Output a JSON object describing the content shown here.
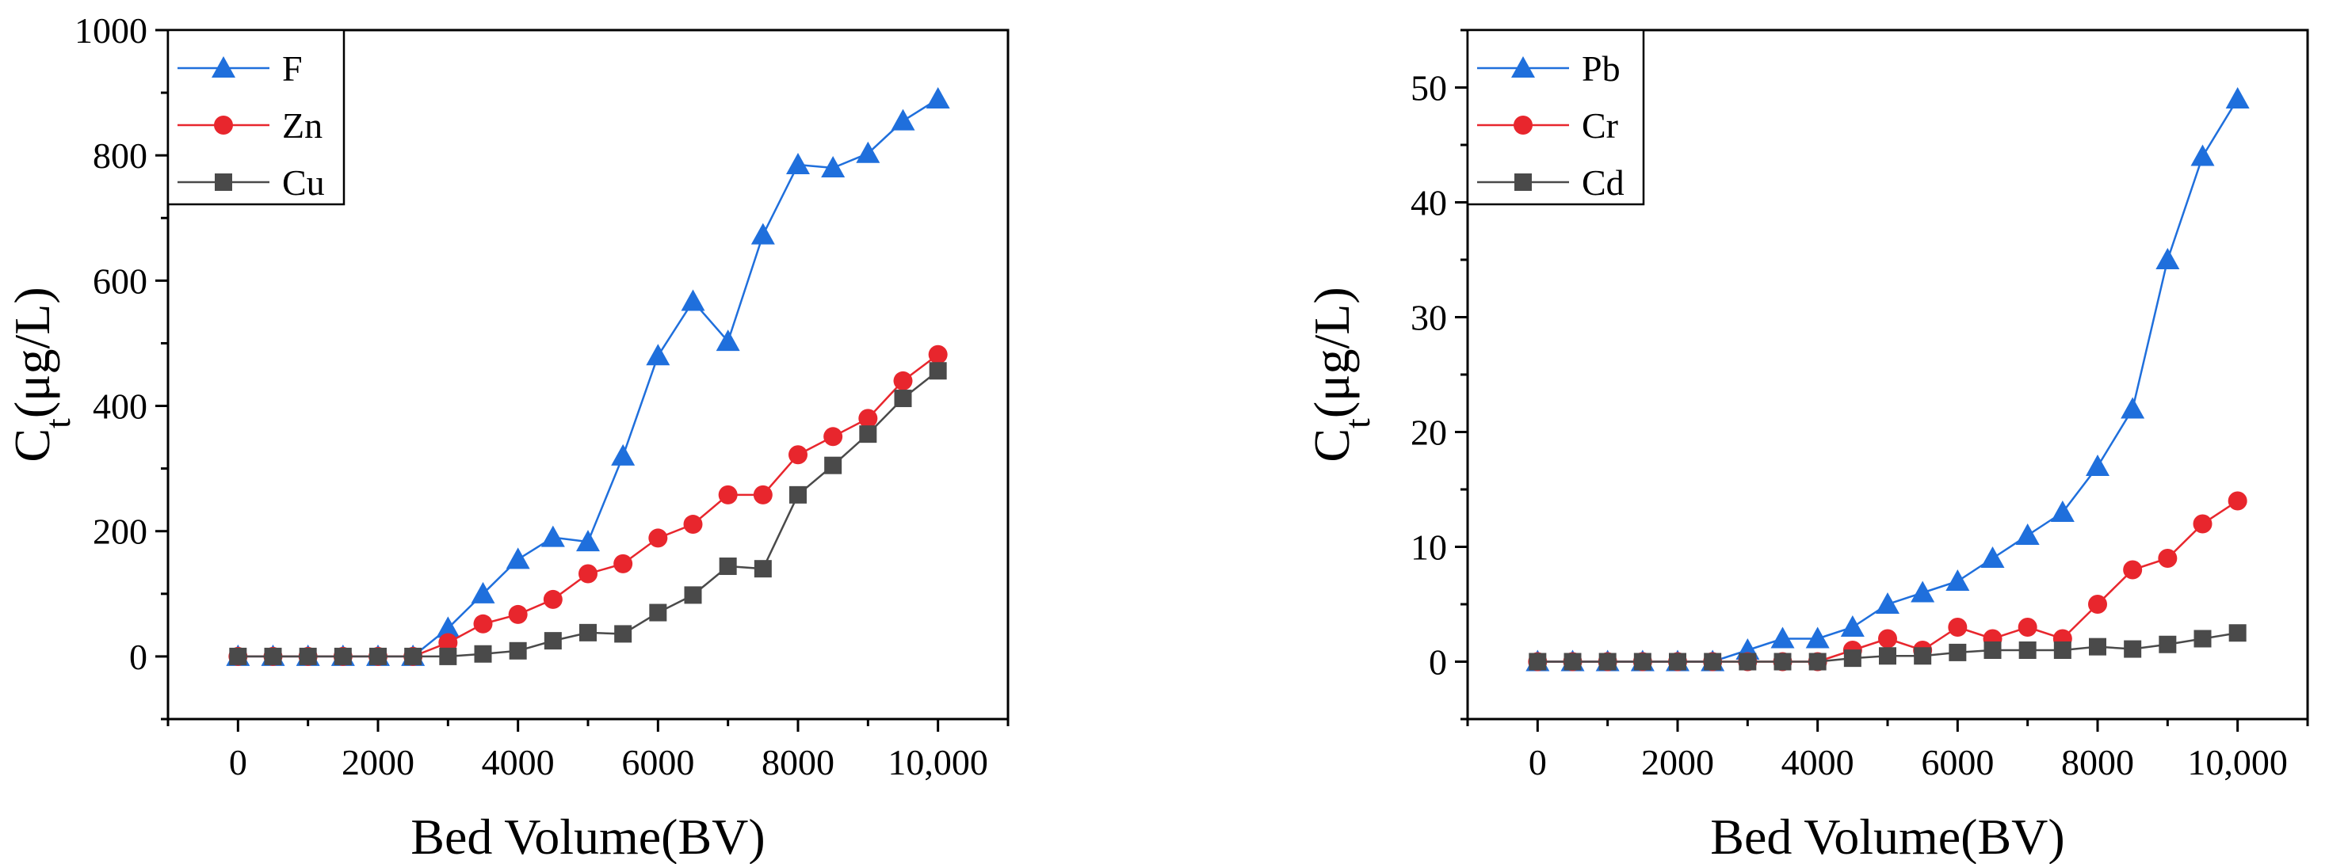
{
  "chart_data": [
    {
      "type": "line",
      "xlabel": "Bed Volume(BV)",
      "ylabel": "Ct(μg/L)",
      "ylabel_main": "C",
      "ylabel_sub": "t",
      "ylabel_rest": "(μg/L)",
      "xlim": [
        -1000,
        11000
      ],
      "ylim": [
        -100,
        1000
      ],
      "xticks": [
        0,
        2000,
        4000,
        6000,
        8000,
        10000
      ],
      "xtick_labels": [
        "0",
        "2000",
        "4000",
        "6000",
        "8000",
        "10,000"
      ],
      "yticks": [
        0,
        200,
        400,
        600,
        800,
        1000
      ],
      "ytick_labels": [
        "0",
        "200",
        "400",
        "600",
        "800",
        "1000"
      ],
      "legend_position": "top-left",
      "x": [
        0,
        500,
        1000,
        1500,
        2000,
        2500,
        3000,
        3500,
        4000,
        4500,
        5000,
        5500,
        6000,
        6500,
        7000,
        7500,
        8000,
        8500,
        9000,
        9500,
        10000
      ],
      "series": [
        {
          "name": "F",
          "marker": "triangle",
          "color": "#1f6fdc",
          "values": [
            0,
            0,
            0,
            0,
            0,
            0,
            45,
            100,
            155,
            190,
            183,
            320,
            480,
            567,
            503,
            673,
            785,
            780,
            803,
            855,
            890
          ]
        },
        {
          "name": "Zn",
          "marker": "circle",
          "color": "#e8262d",
          "values": [
            0,
            0,
            0,
            0,
            0,
            0,
            22,
            52,
            67,
            91,
            132,
            148,
            189,
            211,
            258,
            258,
            322,
            351,
            380,
            440,
            482
          ]
        },
        {
          "name": "Cu",
          "marker": "square",
          "color": "#4a4a4a",
          "values": [
            0,
            0,
            0,
            0,
            0,
            0,
            0,
            4,
            9,
            25,
            38,
            36,
            70,
            98,
            144,
            140,
            258,
            305,
            355,
            412,
            456
          ]
        }
      ]
    },
    {
      "type": "line",
      "xlabel": "Bed Volume(BV)",
      "ylabel": "Ct(μg/L)",
      "ylabel_main": "C",
      "ylabel_sub": "t",
      "ylabel_rest": "(μg/L)",
      "xlim": [
        -1000,
        11000
      ],
      "ylim": [
        -5,
        55
      ],
      "xticks": [
        0,
        2000,
        4000,
        6000,
        8000,
        10000
      ],
      "xtick_labels": [
        "0",
        "2000",
        "4000",
        "6000",
        "8000",
        "10,000"
      ],
      "yticks": [
        0,
        10,
        20,
        30,
        40,
        50
      ],
      "ytick_labels": [
        "0",
        "10",
        "20",
        "30",
        "40",
        "50"
      ],
      "legend_position": "top-left",
      "x": [
        0,
        500,
        1000,
        1500,
        2000,
        2500,
        3000,
        3500,
        4000,
        4500,
        5000,
        5500,
        6000,
        6500,
        7000,
        7500,
        8000,
        8500,
        9000,
        9500,
        10000
      ],
      "series": [
        {
          "name": "Pb",
          "marker": "triangle",
          "color": "#1f6fdc",
          "values": [
            0,
            0,
            0,
            0,
            0,
            0,
            1,
            2,
            2,
            3,
            5,
            6,
            7,
            9,
            11,
            13,
            17,
            22,
            35,
            44,
            49
          ]
        },
        {
          "name": "Cr",
          "marker": "circle",
          "color": "#e8262d",
          "values": [
            0,
            0,
            0,
            0,
            0,
            0,
            0,
            0,
            0,
            1,
            2,
            1,
            3,
            2,
            3,
            2,
            5,
            8,
            9,
            12,
            14
          ]
        },
        {
          "name": "Cd",
          "marker": "square",
          "color": "#4a4a4a",
          "values": [
            0,
            0,
            0,
            0,
            0,
            0,
            0,
            0,
            0,
            0.3,
            0.5,
            0.5,
            0.8,
            1.0,
            1.0,
            1.0,
            1.3,
            1.1,
            1.5,
            2.0,
            2.5
          ]
        }
      ]
    }
  ]
}
